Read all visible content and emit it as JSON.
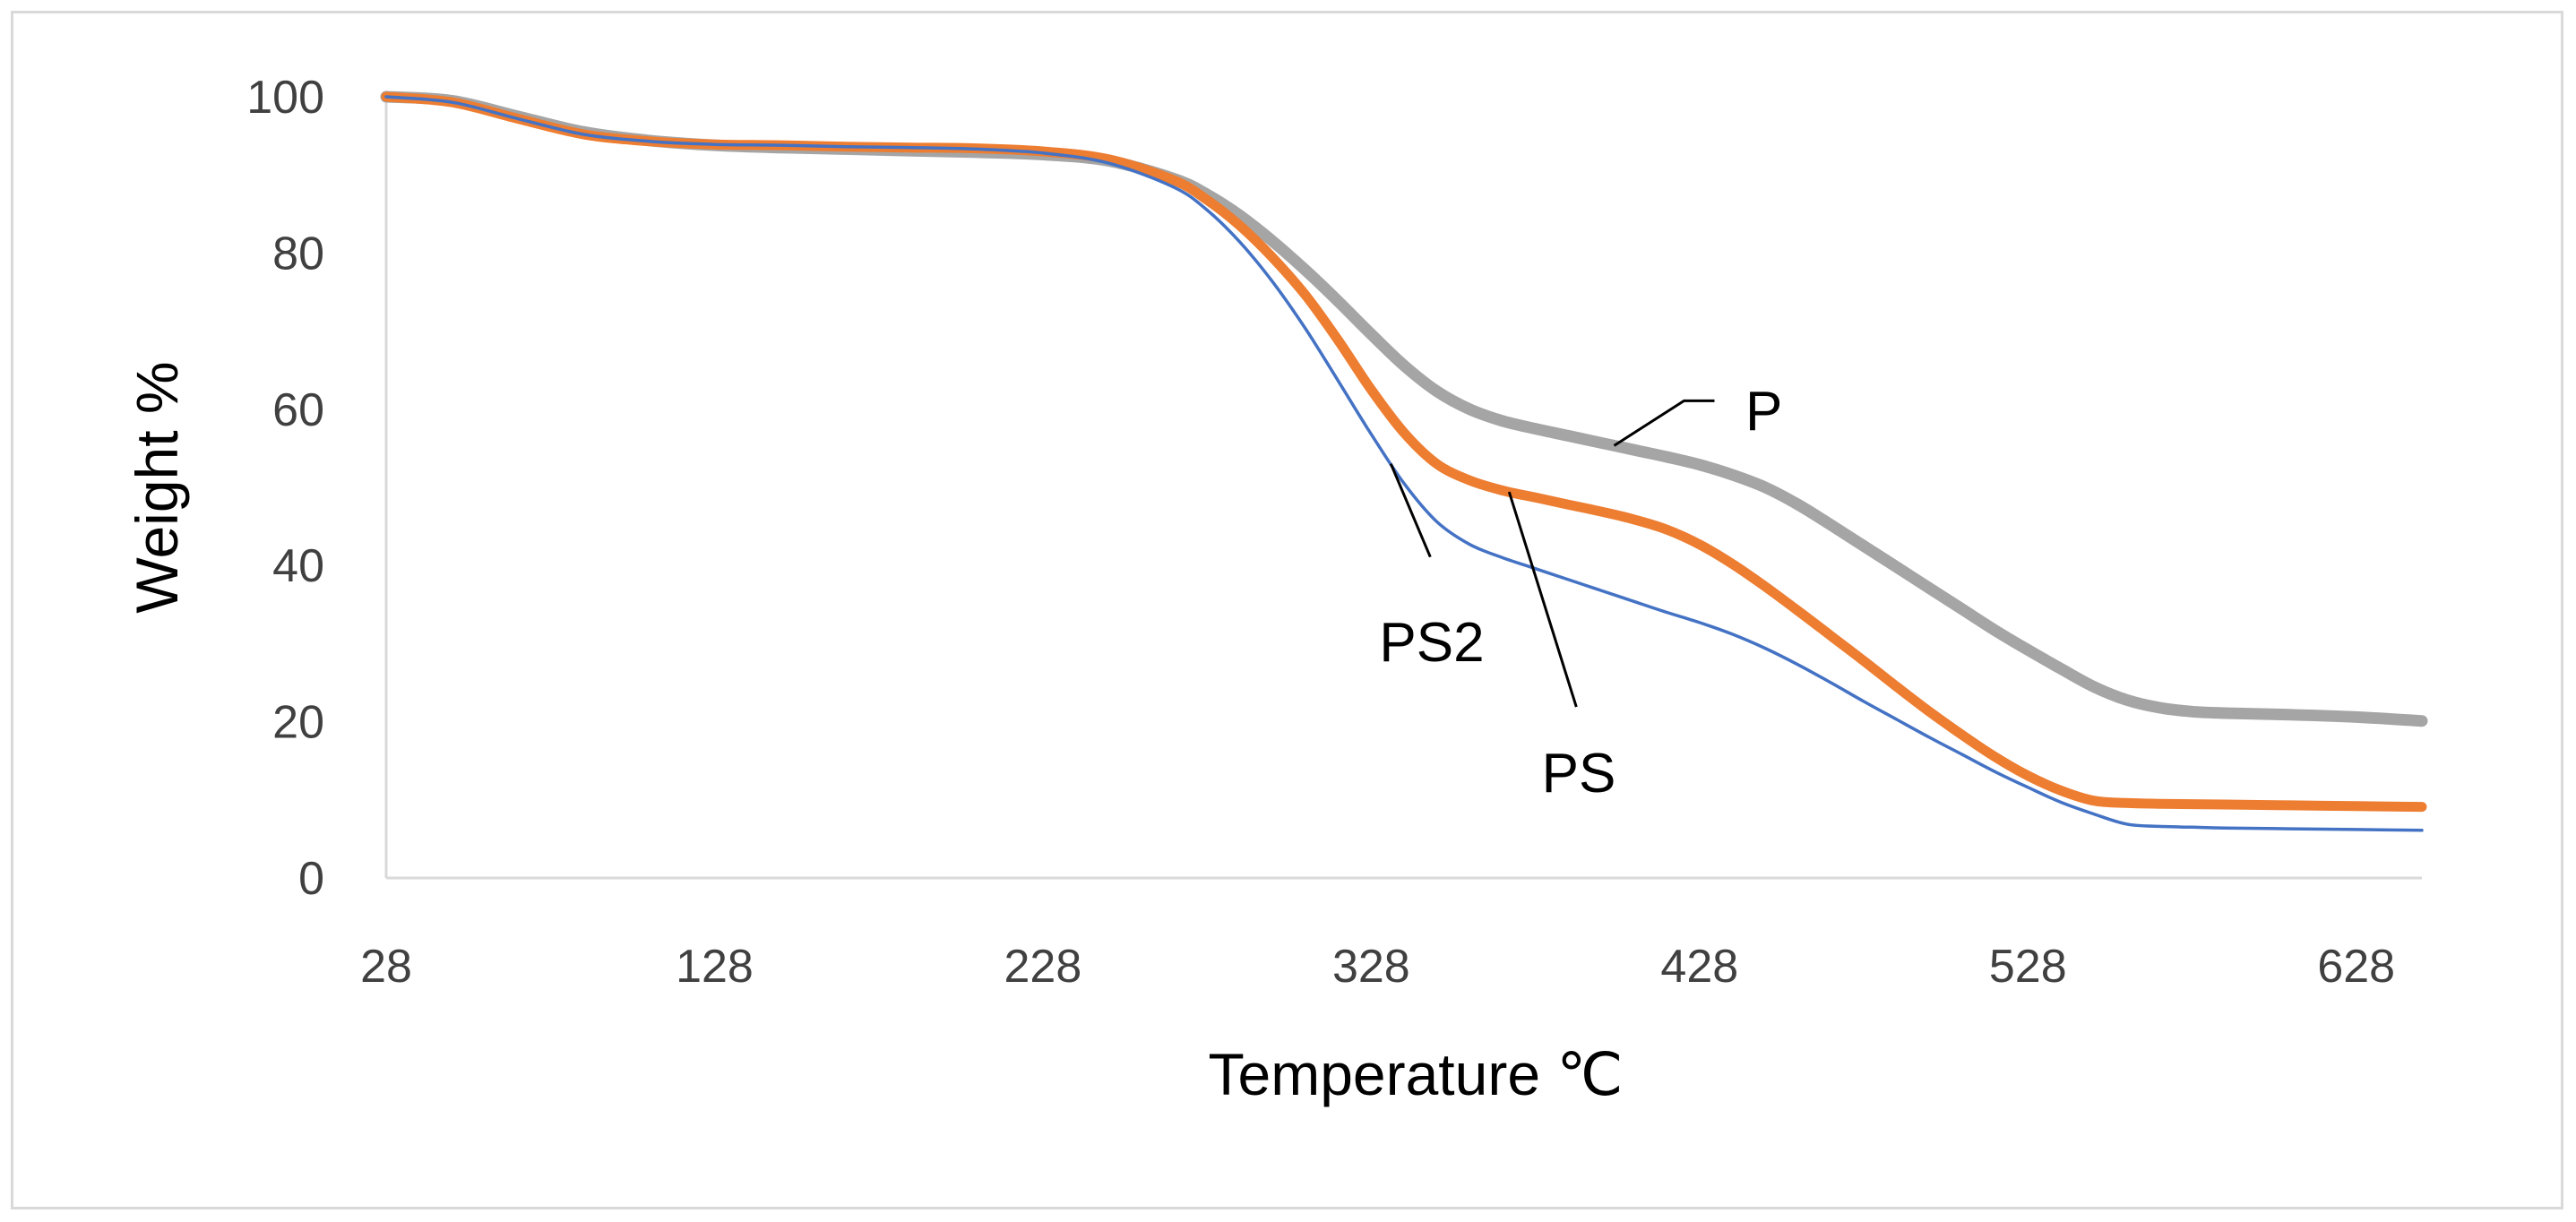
{
  "chart_data": {
    "type": "line",
    "title": "",
    "xlabel": "Temperature ℃",
    "ylabel": "Weight %",
    "xlim": [
      28,
      648
    ],
    "ylim": [
      0,
      100
    ],
    "xticks": [
      28,
      128,
      228,
      328,
      428,
      528,
      628
    ],
    "yticks": [
      0,
      20,
      40,
      60,
      80,
      100
    ],
    "grid": false,
    "legend": "none",
    "series": [
      {
        "name": "P",
        "color": "#a5a5a5",
        "x": [
          28,
          48,
          68,
          88,
          108,
          128,
          148,
          168,
          188,
          208,
          228,
          248,
          268,
          278,
          288,
          298,
          308,
          318,
          328,
          338,
          348,
          358,
          368,
          378,
          388,
          398,
          408,
          418,
          428,
          438,
          448,
          458,
          468,
          478,
          488,
          498,
          508,
          518,
          528,
          538,
          548,
          558,
          568,
          578,
          588,
          608,
          628,
          648
        ],
        "y": [
          100,
          99.5,
          97.5,
          95.5,
          94.4,
          93.8,
          93.5,
          93.3,
          93.1,
          92.9,
          92.6,
          91.8,
          89.5,
          87.5,
          84.8,
          81.5,
          77.8,
          73.8,
          69.6,
          65.6,
          62.3,
          60.0,
          58.5,
          57.5,
          56.6,
          55.7,
          54.8,
          53.9,
          52.9,
          51.6,
          50.0,
          47.8,
          45.2,
          42.5,
          39.8,
          37.1,
          34.4,
          31.7,
          29.2,
          26.8,
          24.5,
          22.8,
          21.8,
          21.3,
          21.1,
          20.9,
          20.6,
          20.1
        ]
      },
      {
        "name": "PS",
        "color": "#ed7d31",
        "x": [
          28,
          48,
          68,
          88,
          108,
          128,
          148,
          168,
          188,
          208,
          228,
          248,
          268,
          278,
          288,
          298,
          308,
          318,
          328,
          338,
          348,
          358,
          368,
          378,
          388,
          398,
          408,
          418,
          428,
          438,
          448,
          458,
          468,
          478,
          488,
          498,
          508,
          518,
          528,
          538,
          548,
          558,
          568,
          588,
          608,
          628,
          648
        ],
        "y": [
          100,
          99.3,
          97.2,
          95.2,
          94.3,
          93.9,
          93.8,
          93.6,
          93.5,
          93.4,
          93.0,
          92.0,
          89.3,
          86.8,
          83.5,
          79.4,
          74.6,
          68.8,
          62.5,
          57.0,
          53.0,
          50.9,
          49.6,
          48.7,
          47.8,
          46.9,
          45.9,
          44.6,
          42.7,
          40.2,
          37.3,
          34.2,
          31.0,
          27.8,
          24.5,
          21.3,
          18.3,
          15.5,
          13.1,
          11.2,
          9.9,
          9.6,
          9.5,
          9.4,
          9.3,
          9.2,
          9.1
        ]
      },
      {
        "name": "PS2",
        "color": "#4472c4",
        "x": [
          28,
          48,
          68,
          88,
          108,
          128,
          148,
          168,
          188,
          208,
          228,
          248,
          268,
          278,
          288,
          298,
          308,
          318,
          328,
          338,
          348,
          358,
          368,
          378,
          388,
          398,
          408,
          418,
          428,
          438,
          448,
          458,
          468,
          478,
          488,
          498,
          508,
          518,
          528,
          538,
          548,
          558,
          568,
          578,
          588,
          608,
          628,
          648
        ],
        "y": [
          100,
          99.3,
          97.2,
          95.2,
          94.3,
          93.9,
          93.8,
          93.6,
          93.5,
          93.3,
          92.8,
          91.5,
          88.4,
          85.5,
          81.4,
          76.3,
          70.3,
          63.6,
          56.8,
          50.5,
          45.6,
          42.7,
          41.0,
          39.6,
          38.2,
          36.8,
          35.4,
          34.0,
          32.7,
          31.2,
          29.4,
          27.3,
          25.0,
          22.6,
          20.3,
          18.0,
          15.8,
          13.6,
          11.6,
          9.7,
          8.2,
          6.9,
          6.6,
          6.5,
          6.4,
          6.3,
          6.2,
          6.1
        ]
      }
    ],
    "annotations": [
      {
        "text": "P",
        "series": "P",
        "at_x": 402
      },
      {
        "text": "PS",
        "series": "PS",
        "at_x": 370
      },
      {
        "text": "PS2",
        "series": "PS2",
        "at_x": 334
      }
    ]
  }
}
